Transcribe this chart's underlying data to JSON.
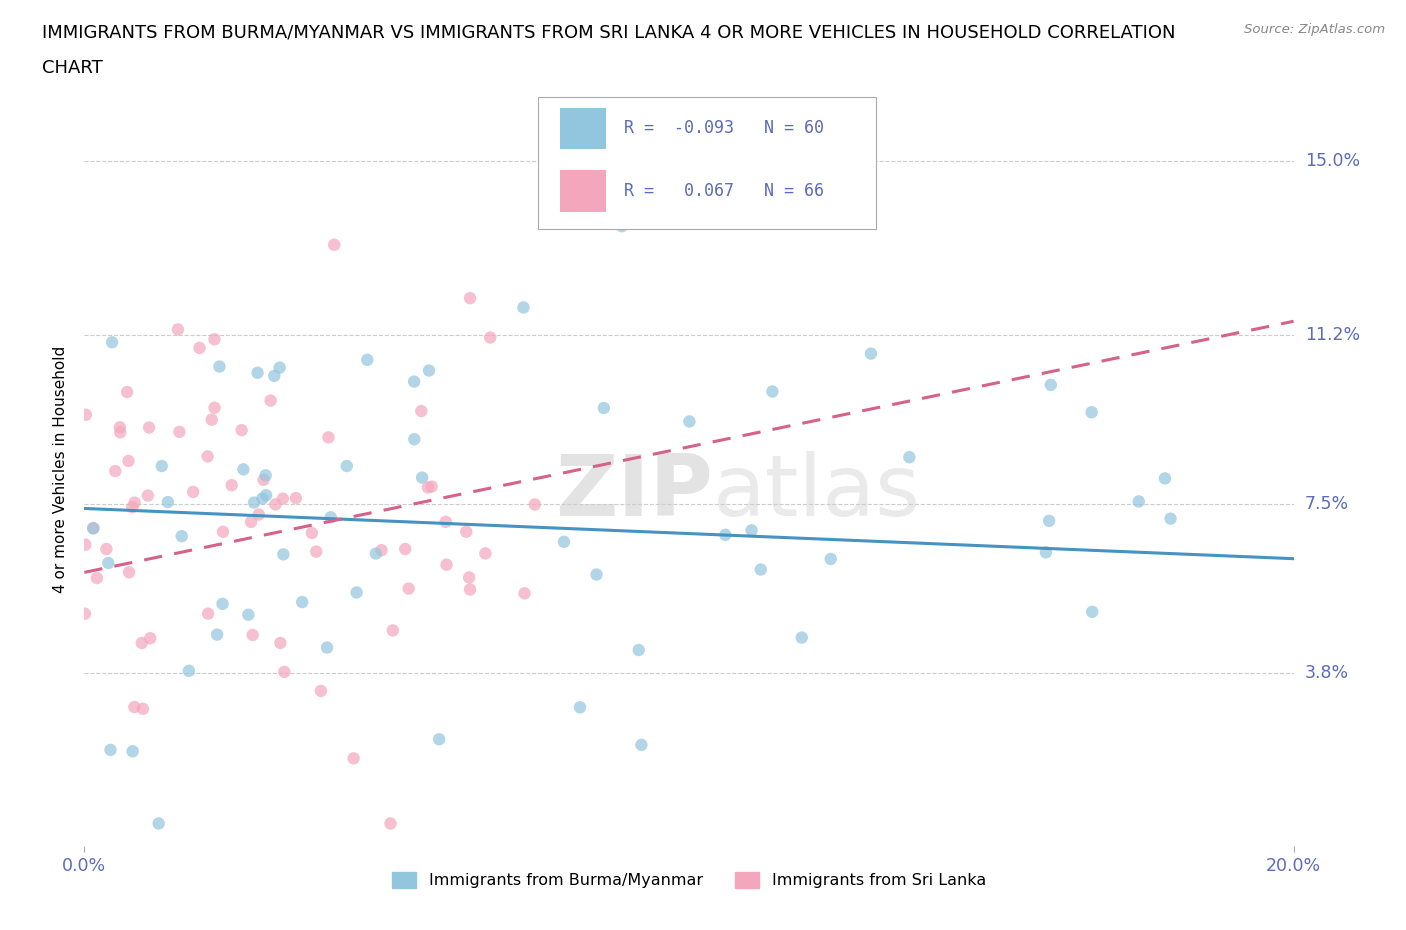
{
  "title_line1": "IMMIGRANTS FROM BURMA/MYANMAR VS IMMIGRANTS FROM SRI LANKA 4 OR MORE VEHICLES IN HOUSEHOLD CORRELATION",
  "title_line2": "CHART",
  "source": "Source: ZipAtlas.com",
  "ylabel": "4 or more Vehicles in Household",
  "xmin": 0.0,
  "xmax": 0.2,
  "ymin": 0.0,
  "ymax": 0.165,
  "yticks": [
    0.038,
    0.075,
    0.112,
    0.15
  ],
  "ytick_labels": [
    "3.8%",
    "7.5%",
    "11.2%",
    "15.0%"
  ],
  "xticks": [
    0.0,
    0.2
  ],
  "xtick_labels": [
    "0.0%",
    "20.0%"
  ],
  "series1_name": "Immigrants from Burma/Myanmar",
  "series1_color": "#92c5de",
  "series1_line_color": "#4393c3",
  "series1_R": -0.093,
  "series1_N": 60,
  "series2_name": "Immigrants from Sri Lanka",
  "series2_color": "#f4a6bc",
  "series2_line_color": "#d6618a",
  "series2_R": 0.067,
  "series2_N": 66,
  "background_color": "#ffffff",
  "grid_color": "#cccccc",
  "title_fontsize": 13,
  "axis_label_color": "#5b6bbd",
  "tick_label_color": "#5b6bbd",
  "legend_text_color": "#5b6bbd"
}
